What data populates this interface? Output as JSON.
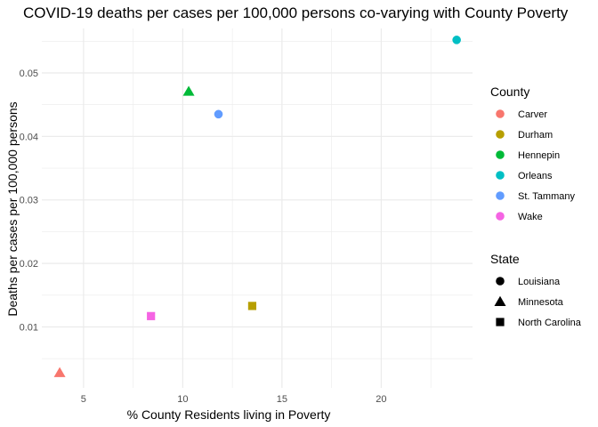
{
  "chart_data": {
    "type": "scatter",
    "title": "COVID-19 deaths per cases per 100,000 persons co-varying with County Poverty",
    "xlabel": "% County Residents living in Poverty",
    "ylabel": "Deaths per cases per 100,000 persons",
    "xlim": [
      2.9,
      24.6
    ],
    "ylim": [
      0.0004,
      0.057
    ],
    "x_ticks": [
      5,
      10,
      15,
      20
    ],
    "x_tick_labels": [
      "5",
      "10",
      "15",
      "20"
    ],
    "y_ticks": [
      0.01,
      0.02,
      0.03,
      0.04,
      0.05
    ],
    "y_tick_labels": [
      "0.01",
      "0.02",
      "0.03",
      "0.04",
      "0.05"
    ],
    "grid": true,
    "legend_placement": "right",
    "points": [
      {
        "county": "Carver",
        "state": "Minnesota",
        "x": 3.8,
        "y": 0.0028
      },
      {
        "county": "Durham",
        "state": "North Carolina",
        "x": 13.5,
        "y": 0.0133
      },
      {
        "county": "Hennepin",
        "state": "Minnesota",
        "x": 10.3,
        "y": 0.0471
      },
      {
        "county": "Orleans",
        "state": "Louisiana",
        "x": 23.8,
        "y": 0.0552
      },
      {
        "county": "St. Tammany",
        "state": "Louisiana",
        "x": 11.8,
        "y": 0.0435
      },
      {
        "county": "Wake",
        "state": "North Carolina",
        "x": 8.4,
        "y": 0.0117
      }
    ],
    "legend_color": {
      "title": "County",
      "items": [
        {
          "label": "Carver",
          "color": "#F8766D"
        },
        {
          "label": "Durham",
          "color": "#B79F00"
        },
        {
          "label": "Hennepin",
          "color": "#00BA38"
        },
        {
          "label": "Orleans",
          "color": "#00BFC4"
        },
        {
          "label": "St. Tammany",
          "color": "#619CFF"
        },
        {
          "label": "Wake",
          "color": "#F564E3"
        }
      ]
    },
    "legend_shape": {
      "title": "State",
      "items": [
        {
          "label": "Louisiana",
          "shape": "circle"
        },
        {
          "label": "Minnesota",
          "shape": "triangle"
        },
        {
          "label": "North Carolina",
          "shape": "square"
        }
      ]
    },
    "grid_color": "#EBEBEB"
  }
}
